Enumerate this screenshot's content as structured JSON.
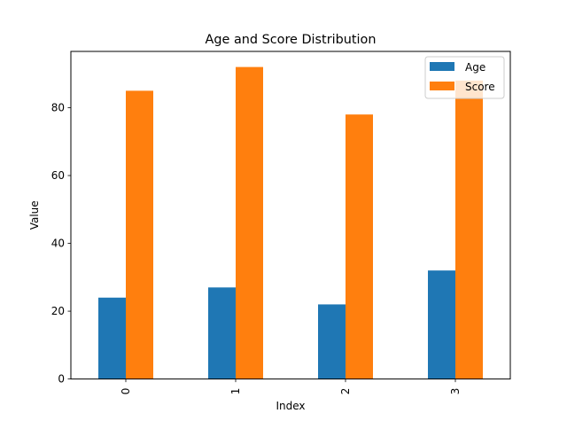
{
  "chart_data": {
    "type": "bar",
    "title": "Age and Score Distribution",
    "xlabel": "Index",
    "ylabel": "Value",
    "categories": [
      "0",
      "1",
      "2",
      "3"
    ],
    "series": [
      {
        "name": "Age",
        "values": [
          24,
          27,
          22,
          32
        ],
        "color": "#1f77b4"
      },
      {
        "name": "Score",
        "values": [
          85,
          92,
          78,
          88
        ],
        "color": "#ff7f0e"
      }
    ],
    "ylim": [
      0,
      96.6
    ],
    "yticks": [
      0,
      20,
      40,
      60,
      80
    ],
    "grid": false,
    "legend_position": "upper right"
  }
}
